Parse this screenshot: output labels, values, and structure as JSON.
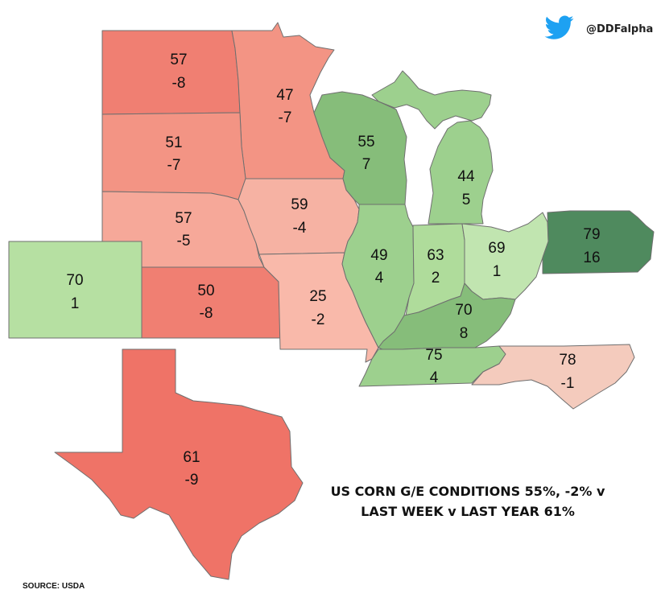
{
  "brand": {
    "handle": "@DDFalpha",
    "icon": "twitter-bird-icon",
    "icon_color": "#1da1f2"
  },
  "headline": {
    "line1": "US CORN G/E CONDITIONS 55%, -2% v",
    "line2": "LAST WEEK v LAST YEAR 61%"
  },
  "source": "SOURCE: USDA",
  "color_scale": {
    "strong_negative": "#ef7367",
    "negative": "#f39484",
    "mild_negative": "#f7b5a5",
    "slight_negative": "#f4cbbd",
    "slight_positive": "#b6e0a2",
    "positive": "#9dd08e",
    "strong_positive": "#4f8a5e"
  },
  "states": {
    "nd": {
      "score": "57",
      "change": "-8"
    },
    "mn": {
      "score": "47",
      "change": "-7"
    },
    "sd": {
      "score": "51",
      "change": "-7"
    },
    "ne": {
      "score": "57",
      "change": "-5"
    },
    "co": {
      "score": "70",
      "change": "1"
    },
    "ks": {
      "score": "50",
      "change": "-8"
    },
    "ia": {
      "score": "59",
      "change": "-4"
    },
    "mo": {
      "score": "25",
      "change": "-2"
    },
    "wi": {
      "score": "55",
      "change": "7"
    },
    "mi": {
      "score": "44",
      "change": "5"
    },
    "il": {
      "score": "49",
      "change": "4"
    },
    "in": {
      "score": "63",
      "change": "2"
    },
    "oh": {
      "score": "69",
      "change": "1"
    },
    "pa": {
      "score": "79",
      "change": "16"
    },
    "ky": {
      "score": "70",
      "change": "8"
    },
    "tn": {
      "score": "75",
      "change": "4"
    },
    "nc": {
      "score": "78",
      "change": "-1"
    },
    "tx": {
      "score": "61",
      "change": "-9"
    }
  }
}
